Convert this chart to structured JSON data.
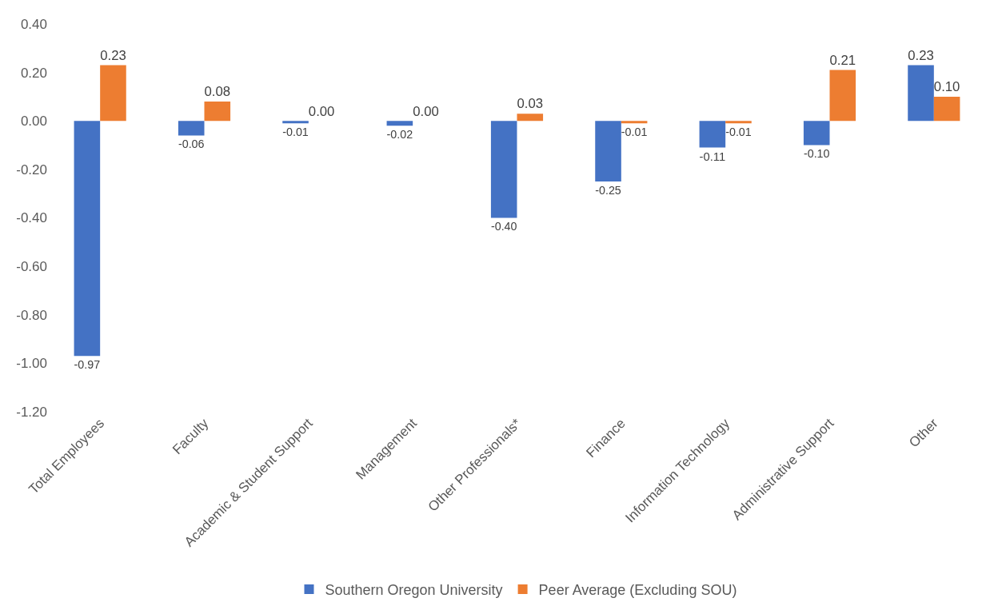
{
  "chart_data": {
    "type": "bar",
    "categories": [
      "Total Employees",
      "Faculty",
      "Academic & Student Support",
      "Management",
      "Other Professionals*",
      "Finance",
      "Information Technology",
      "Administrative Support",
      "Other"
    ],
    "series": [
      {
        "name": "Southern Oregon University",
        "color": "#4472c4",
        "values": [
          -0.97,
          -0.06,
          -0.01,
          -0.02,
          -0.4,
          -0.25,
          -0.11,
          -0.1,
          0.23
        ],
        "value_labels": [
          "-0.97",
          "-0.06",
          "-0.01",
          "-0.02",
          "-0.40",
          "-0.25",
          "-0.11",
          "-0.10",
          "0.23"
        ]
      },
      {
        "name": "Peer Average (Excluding SOU)",
        "color": "#ed7d31",
        "values": [
          0.23,
          0.08,
          0.0,
          0.0,
          0.03,
          -0.01,
          -0.01,
          0.21,
          0.1
        ],
        "value_labels": [
          "0.23",
          "0.08",
          "0.00",
          "0.00",
          "0.03",
          "-0.01",
          "-0.01",
          "0.21",
          "0.10"
        ]
      }
    ],
    "ylim": [
      -1.2,
      0.4
    ],
    "yticks": [
      {
        "value": -1.2,
        "label": "-1.20"
      },
      {
        "value": -1.0,
        "label": "-1.00"
      },
      {
        "value": -0.8,
        "label": "-0.80"
      },
      {
        "value": -0.6,
        "label": "-0.60"
      },
      {
        "value": -0.4,
        "label": "-0.40"
      },
      {
        "value": -0.2,
        "label": "-0.20"
      },
      {
        "value": 0,
        "label": "0.00"
      },
      {
        "value": 0.2,
        "label": "0.20"
      },
      {
        "value": 0.4,
        "label": "0.40"
      }
    ],
    "legend": "bottom"
  }
}
